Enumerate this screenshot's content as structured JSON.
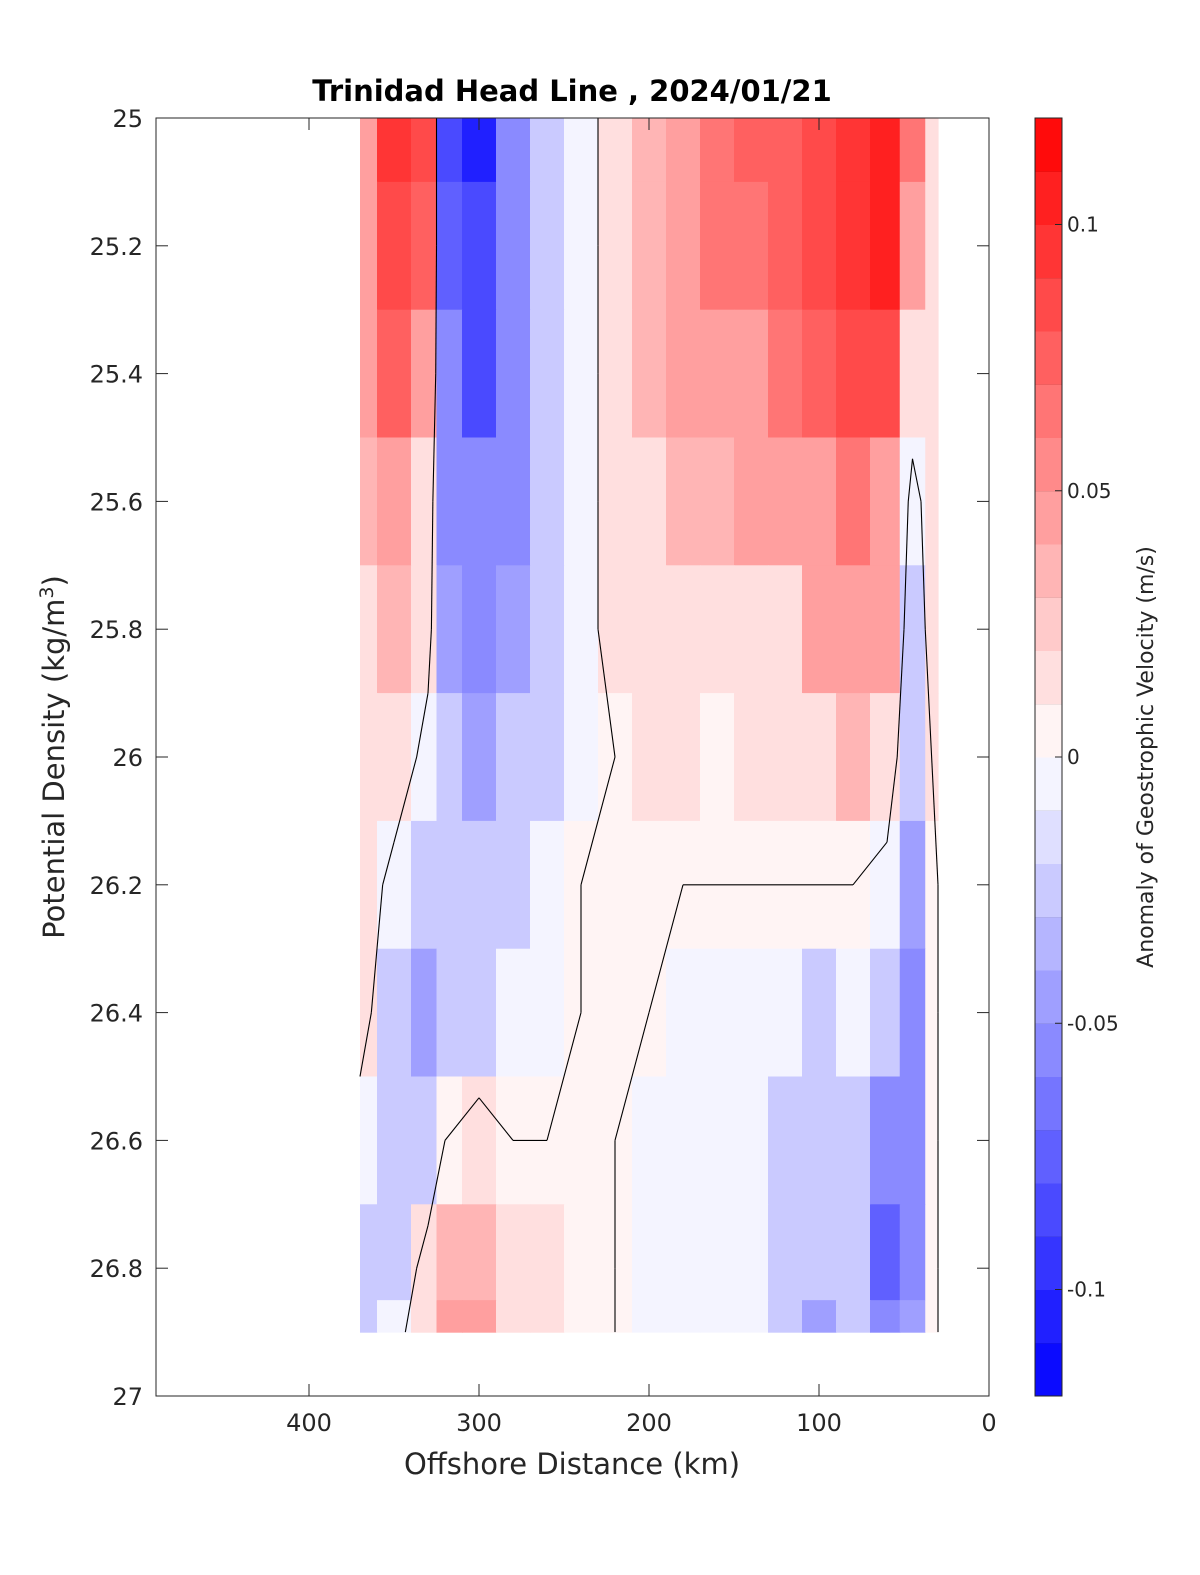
{
  "chart_data": {
    "type": "heatmap",
    "title": "Trinidad Head Line , 2024/01/21",
    "xlabel": "Offshore Distance (km)",
    "ylabel_main": "Potential Density (kg/m",
    "ylabel_sup": "3",
    "ylabel_close": ")",
    "xlim": [
      490,
      0
    ],
    "ylim": [
      25,
      27
    ],
    "y_reversed": true,
    "x_reversed": true,
    "xticks": [
      400,
      300,
      200,
      100,
      0
    ],
    "xtick_labels": [
      "400",
      "300",
      "200",
      "100",
      "0"
    ],
    "yticks": [
      25,
      25.2,
      25.4,
      25.6,
      25.8,
      26,
      26.2,
      26.4,
      26.6,
      26.8,
      27
    ],
    "ytick_labels": [
      "25",
      "25.2",
      "25.4",
      "25.6",
      "25.8",
      "26",
      "26.2",
      "26.4",
      "26.6",
      "26.8",
      "27"
    ],
    "colorbar": {
      "label": "Anomaly of Geostrophic Velocity (m/s)",
      "clim": [
        -0.12,
        0.12
      ],
      "ticks": [
        0.1,
        0.05,
        0,
        -0.05,
        -0.1
      ],
      "tick_labels": [
        "0.1",
        "0.05",
        "0",
        "-0.05",
        "-0.1"
      ],
      "levels": 24,
      "colormap": "blue-white-red",
      "neg_color": "#0000ff",
      "pos_color": "#ff0000"
    },
    "x": [
      370,
      350,
      330,
      320,
      300,
      280,
      260,
      240,
      220,
      200,
      180,
      160,
      140,
      120,
      100,
      80,
      60,
      45,
      30
    ],
    "y": [
      25,
      25.2,
      25.4,
      25.6,
      25.8,
      26,
      26.2,
      26.4,
      26.6,
      26.8,
      26.9
    ],
    "values": [
      [
        0.04,
        0.09,
        0.08,
        -0.08,
        -0.1,
        -0.05,
        -0.03,
        -0.01,
        0.01,
        0.03,
        0.05,
        0.06,
        0.07,
        0.07,
        0.08,
        0.09,
        0.11,
        0.06,
        0.02
      ],
      [
        0.04,
        0.08,
        0.07,
        -0.07,
        -0.09,
        -0.05,
        -0.03,
        -0.01,
        0.01,
        0.03,
        0.05,
        0.06,
        0.06,
        0.07,
        0.08,
        0.09,
        0.1,
        0.05,
        0.02
      ],
      [
        0.04,
        0.07,
        0.05,
        -0.06,
        -0.08,
        -0.05,
        -0.03,
        -0.01,
        0.01,
        0.03,
        0.04,
        0.05,
        0.05,
        0.06,
        0.07,
        0.08,
        0.08,
        0.02,
        0.02
      ],
      [
        0.03,
        0.05,
        0.02,
        -0.05,
        -0.06,
        -0.05,
        -0.02,
        -0.01,
        0.01,
        0.02,
        0.03,
        0.03,
        0.04,
        0.04,
        0.05,
        0.06,
        0.05,
        -0.01,
        0.02
      ],
      [
        0.02,
        0.03,
        0.01,
        -0.04,
        -0.05,
        -0.04,
        -0.02,
        -0.01,
        0.01,
        0.01,
        0.02,
        0.01,
        0.02,
        0.02,
        0.04,
        0.05,
        0.04,
        -0.02,
        0.02
      ],
      [
        0.02,
        0.02,
        -0.01,
        -0.03,
        -0.04,
        -0.03,
        -0.02,
        -0.01,
        0.0,
        0.01,
        0.01,
        0.0,
        0.01,
        0.01,
        0.02,
        0.03,
        0.02,
        -0.03,
        0.01
      ],
      [
        0.02,
        -0.01,
        -0.03,
        -0.03,
        -0.03,
        -0.02,
        -0.01,
        0.0,
        0.0,
        0.0,
        0.0,
        0.0,
        0.0,
        0.0,
        0.0,
        0.0,
        -0.01,
        -0.04,
        0.0
      ],
      [
        0.01,
        -0.02,
        -0.04,
        -0.03,
        -0.02,
        -0.01,
        -0.01,
        0.0,
        0.0,
        0.0,
        -0.01,
        -0.01,
        -0.01,
        -0.01,
        -0.02,
        -0.01,
        -0.03,
        -0.05,
        0.0
      ],
      [
        -0.01,
        -0.03,
        -0.02,
        0.0,
        0.01,
        0.0,
        0.0,
        0.0,
        0.0,
        -0.01,
        -0.01,
        -0.01,
        -0.01,
        -0.02,
        -0.03,
        -0.02,
        -0.05,
        -0.06,
        0.0
      ],
      [
        -0.02,
        -0.02,
        0.01,
        0.03,
        0.03,
        0.02,
        0.01,
        0.0,
        0.0,
        -0.01,
        -0.01,
        -0.01,
        -0.01,
        -0.02,
        -0.03,
        -0.03,
        -0.07,
        -0.06,
        0.0
      ],
      [
        -0.02,
        -0.01,
        0.02,
        0.05,
        0.04,
        0.02,
        0.01,
        0.0,
        0.0,
        -0.01,
        -0.01,
        -0.01,
        -0.01,
        -0.02,
        -0.04,
        -0.03,
        -0.05,
        -0.04,
        0.0
      ]
    ]
  }
}
